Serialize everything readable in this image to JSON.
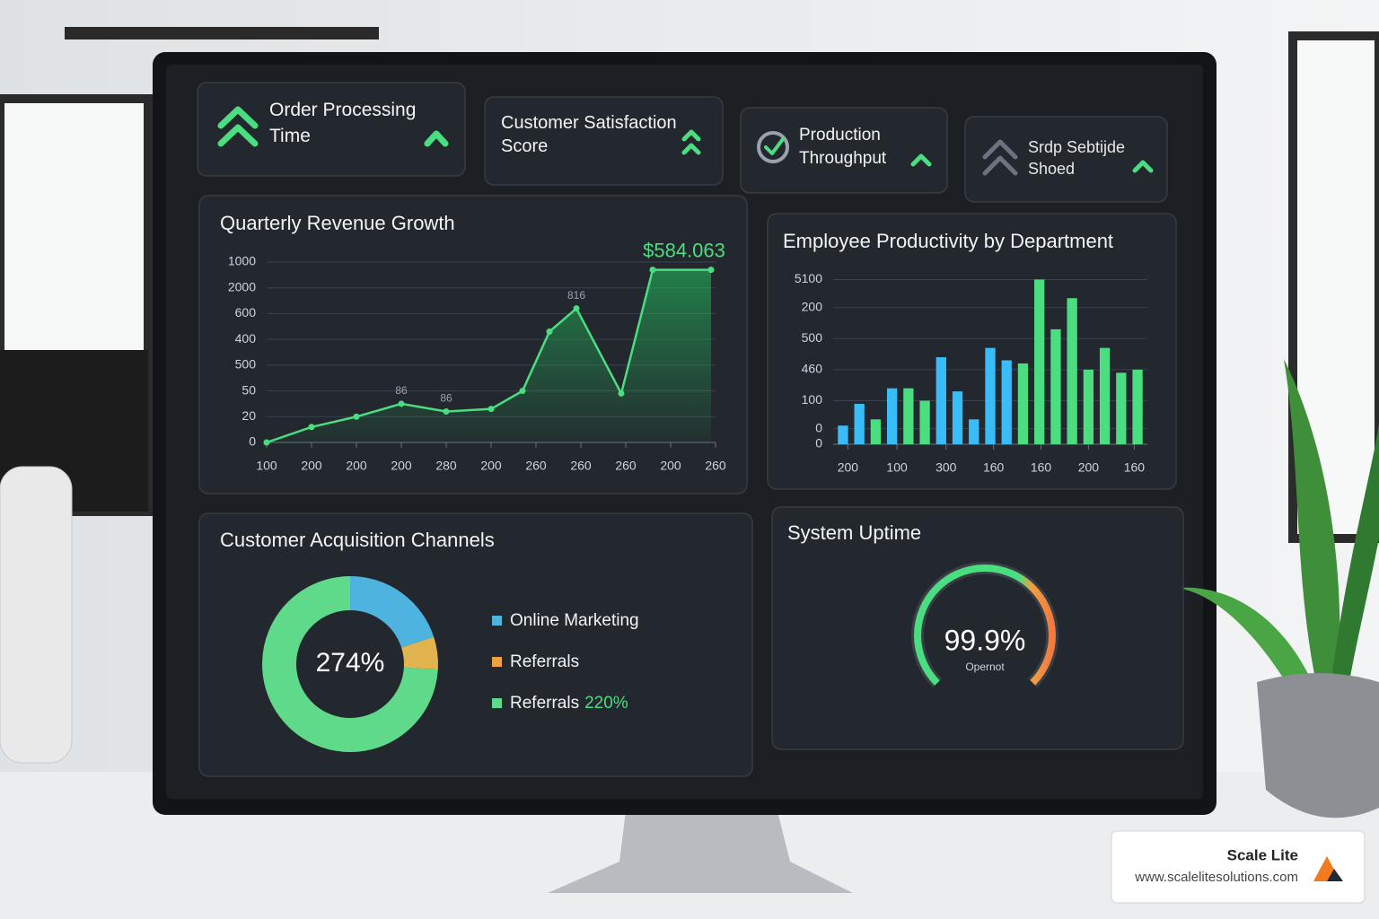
{
  "kpi_cards": [
    {
      "title": "Order Processing Time"
    },
    {
      "title": "Customer Satisfaction Score"
    },
    {
      "title": "Production Throughput"
    },
    {
      "title": "Srdp Sebtijde Shoed"
    }
  ],
  "chart_data": [
    {
      "type": "line",
      "title": "Quarterly Revenue Growth",
      "x": [
        0,
        1,
        2,
        3,
        4,
        5,
        5.7,
        6.3,
        6.9,
        7.9,
        8.6,
        9.9
      ],
      "values": [
        0,
        0.6,
        1.0,
        1.5,
        1.2,
        1.3,
        2.0,
        4.3,
        5.2,
        1.9,
        6.7,
        6.7
      ],
      "color": "#4ade80",
      "xlim": [
        0,
        10
      ],
      "xticks": [
        {
          "value": 0,
          "label": "100"
        },
        {
          "value": 1,
          "label": "200"
        },
        {
          "value": 2,
          "label": "200"
        },
        {
          "value": 3,
          "label": "200"
        },
        {
          "value": 4,
          "label": "280"
        },
        {
          "value": 5,
          "label": "200"
        },
        {
          "value": 6,
          "label": "260"
        },
        {
          "value": 7,
          "label": "260"
        },
        {
          "value": 8,
          "label": "260"
        },
        {
          "value": 9,
          "label": "200"
        },
        {
          "value": 10,
          "label": "260"
        }
      ],
      "ylim": [
        0,
        7
      ],
      "yticks": [
        0,
        {
          "value": 1,
          "label": "20"
        },
        {
          "value": 2,
          "label": "50"
        },
        {
          "value": 3,
          "label": "500"
        },
        {
          "value": 4,
          "label": "400"
        },
        {
          "value": 5,
          "label": "600"
        },
        {
          "value": 6,
          "label": "2000"
        },
        {
          "value": 7,
          "label": "1000"
        }
      ],
      "grid": true,
      "annotations": [
        {
          "text": "86",
          "x": 3,
          "y": 1.5
        },
        {
          "text": "86",
          "x": 4,
          "y": 1.2
        },
        {
          "text": "816",
          "x": 6.9,
          "y": 5.2
        },
        {
          "text": "$584.063",
          "x": 9.3,
          "y": 6.7
        }
      ]
    },
    {
      "type": "bar",
      "title": "Employee Productivity by Department",
      "values": [
        0.6,
        1.3,
        0.8,
        1.8,
        1.8,
        1.4,
        2.8,
        1.7,
        0.8,
        3.1,
        2.7,
        2.6,
        5.3,
        3.7,
        4.7,
        2.4,
        3.1,
        2.3,
        2.4
      ],
      "colors": [
        "#38bdf8",
        "#38bdf8",
        "#4ade80",
        "#38bdf8",
        "#4ade80",
        "#4ade80",
        "#38bdf8",
        "#38bdf8",
        "#38bdf8",
        "#38bdf8",
        "#38bdf8",
        "#4ade80",
        "#4ade80",
        "#4ade80",
        "#4ade80",
        "#4ade80",
        "#4ade80",
        "#4ade80",
        "#4ade80"
      ],
      "xlim": [
        -0.6,
        18.6
      ],
      "xticks": [
        {
          "value": 0.3,
          "label": "200"
        },
        {
          "value": 3.3,
          "label": "100"
        },
        {
          "value": 6.3,
          "label": "300"
        },
        {
          "value": 9.2,
          "label": "160"
        },
        {
          "value": 12.1,
          "label": "160"
        },
        {
          "value": 15,
          "label": "200"
        },
        {
          "value": 17.8,
          "label": "160"
        }
      ],
      "ylim": [
        0,
        5.4
      ],
      "yticks": [
        0,
        {
          "value": 0.5,
          "label": "0"
        },
        {
          "value": 1.4,
          "label": "100"
        },
        {
          "value": 2.4,
          "label": "460"
        },
        {
          "value": 3.4,
          "label": "500"
        },
        {
          "value": 4.4,
          "label": "200"
        },
        {
          "value": 5.3,
          "label": "5100"
        }
      ],
      "grid": true
    },
    {
      "type": "pie",
      "title": "Customer Acquisition Channels",
      "center_label": "274%",
      "categories": [
        "Online Marketing",
        "Referrals",
        "Referrals"
      ],
      "values": [
        20,
        6,
        74
      ],
      "colors": [
        "#4fb3e0",
        "#e2b44f",
        "#5fd98a"
      ],
      "legend_colors": [
        "#4fb3e0",
        "#f0a040",
        "#5fd98a"
      ],
      "legend_note": "220%"
    },
    {
      "type": "gauge",
      "title": "System Uptime",
      "value": 99.9,
      "value_label": "99.9%",
      "subtitle": "Opernot",
      "ylim": [
        0,
        100
      ]
    }
  ],
  "branding": {
    "name": "Scale Lite",
    "url": "www.scalelitesolutions.com"
  }
}
